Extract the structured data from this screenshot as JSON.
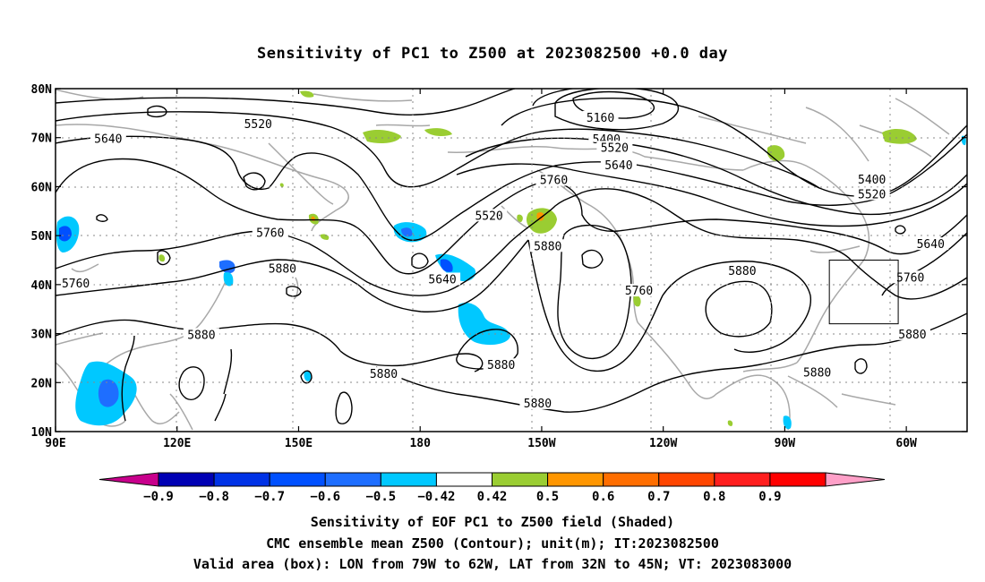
{
  "title": "Sensitivity of PC1 to Z500 at 2023082500 +0.0 day",
  "axes": {
    "lon_ticks": [
      {
        "lon": 90,
        "label": "90E"
      },
      {
        "lon": 120,
        "label": "120E"
      },
      {
        "lon": 150,
        "label": "150E"
      },
      {
        "lon": 180,
        "label": "180"
      },
      {
        "lon": 210,
        "label": "150W"
      },
      {
        "lon": 240,
        "label": "120W"
      },
      {
        "lon": 270,
        "label": "90W"
      },
      {
        "lon": 300,
        "label": "60W"
      }
    ],
    "lat_ticks": [
      {
        "lat": 10,
        "label": "10N"
      },
      {
        "lat": 20,
        "label": "20N"
      },
      {
        "lat": 30,
        "label": "30N"
      },
      {
        "lat": 40,
        "label": "40N"
      },
      {
        "lat": 50,
        "label": "50N"
      },
      {
        "lat": 60,
        "label": "60N"
      },
      {
        "lat": 70,
        "label": "70N"
      },
      {
        "lat": 80,
        "label": "80N"
      }
    ],
    "lon_range": [
      90,
      315
    ],
    "lat_range": [
      10,
      80
    ],
    "grid": "dotted"
  },
  "contour_labels": [
    {
      "text": "5520",
      "lon": 140,
      "lat": 72.5
    },
    {
      "text": "5640",
      "lon": 103,
      "lat": 69.5
    },
    {
      "text": "5160",
      "lon": 224.5,
      "lat": 73.8
    },
    {
      "text": "5400",
      "lon": 226,
      "lat": 69.4
    },
    {
      "text": "5520",
      "lon": 228,
      "lat": 67.7
    },
    {
      "text": "5640",
      "lon": 229,
      "lat": 64.1
    },
    {
      "text": "5760",
      "lon": 213,
      "lat": 61.1
    },
    {
      "text": "5520",
      "lon": 197,
      "lat": 53.8
    },
    {
      "text": "5760",
      "lon": 143,
      "lat": 50.3
    },
    {
      "text": "5880",
      "lon": 146,
      "lat": 43.0
    },
    {
      "text": "5760",
      "lon": 95,
      "lat": 40.0
    },
    {
      "text": "5640",
      "lon": 185.5,
      "lat": 40.8
    },
    {
      "text": "5880",
      "lon": 211.5,
      "lat": 47.6
    },
    {
      "text": "5760",
      "lon": 234,
      "lat": 38.5
    },
    {
      "text": "5880",
      "lon": 259.5,
      "lat": 42.5
    },
    {
      "text": "5400",
      "lon": 291.5,
      "lat": 61.2
    },
    {
      "text": "5520",
      "lon": 291.5,
      "lat": 58.2
    },
    {
      "text": "5640",
      "lon": 306,
      "lat": 48.0
    },
    {
      "text": "5760",
      "lon": 301,
      "lat": 41.2
    },
    {
      "text": "5880",
      "lon": 126,
      "lat": 29.5
    },
    {
      "text": "5880",
      "lon": 171,
      "lat": 21.5
    },
    {
      "text": "5880",
      "lon": 200,
      "lat": 23.3
    },
    {
      "text": "5880",
      "lon": 209,
      "lat": 15.5
    },
    {
      "text": "5880",
      "lon": 278,
      "lat": 21.8
    },
    {
      "text": "5880",
      "lon": 301.5,
      "lat": 29.6
    }
  ],
  "valid_box": {
    "lon_from": 281,
    "lon_to": 298,
    "lat_from": 32,
    "lat_to": 45
  },
  "colorbar": {
    "colors": [
      "#c8008c",
      "#0000b4",
      "#0032e6",
      "#0050ff",
      "#1e6eff",
      "#00c8ff",
      "#ffffff",
      "#9acd32",
      "#ff9600",
      "#ff6e00",
      "#ff4600",
      "#ff1e1e",
      "#ff0000",
      "#ffa0c8"
    ],
    "labels": [
      "−0.9",
      "−0.8",
      "−0.7",
      "−0.6",
      "−0.5",
      "−0.42",
      "0.42",
      "0.5",
      "0.6",
      "0.7",
      "0.8",
      "0.9"
    ]
  },
  "captions": [
    "Sensitivity of EOF PC1 to Z500 field (Shaded)",
    "CMC ensemble mean Z500 (Contour); unit(m); IT:2023082500",
    "Valid area (box): LON from 79W to 62W, LAT from 32N to 45N; VT: 2023083000"
  ]
}
